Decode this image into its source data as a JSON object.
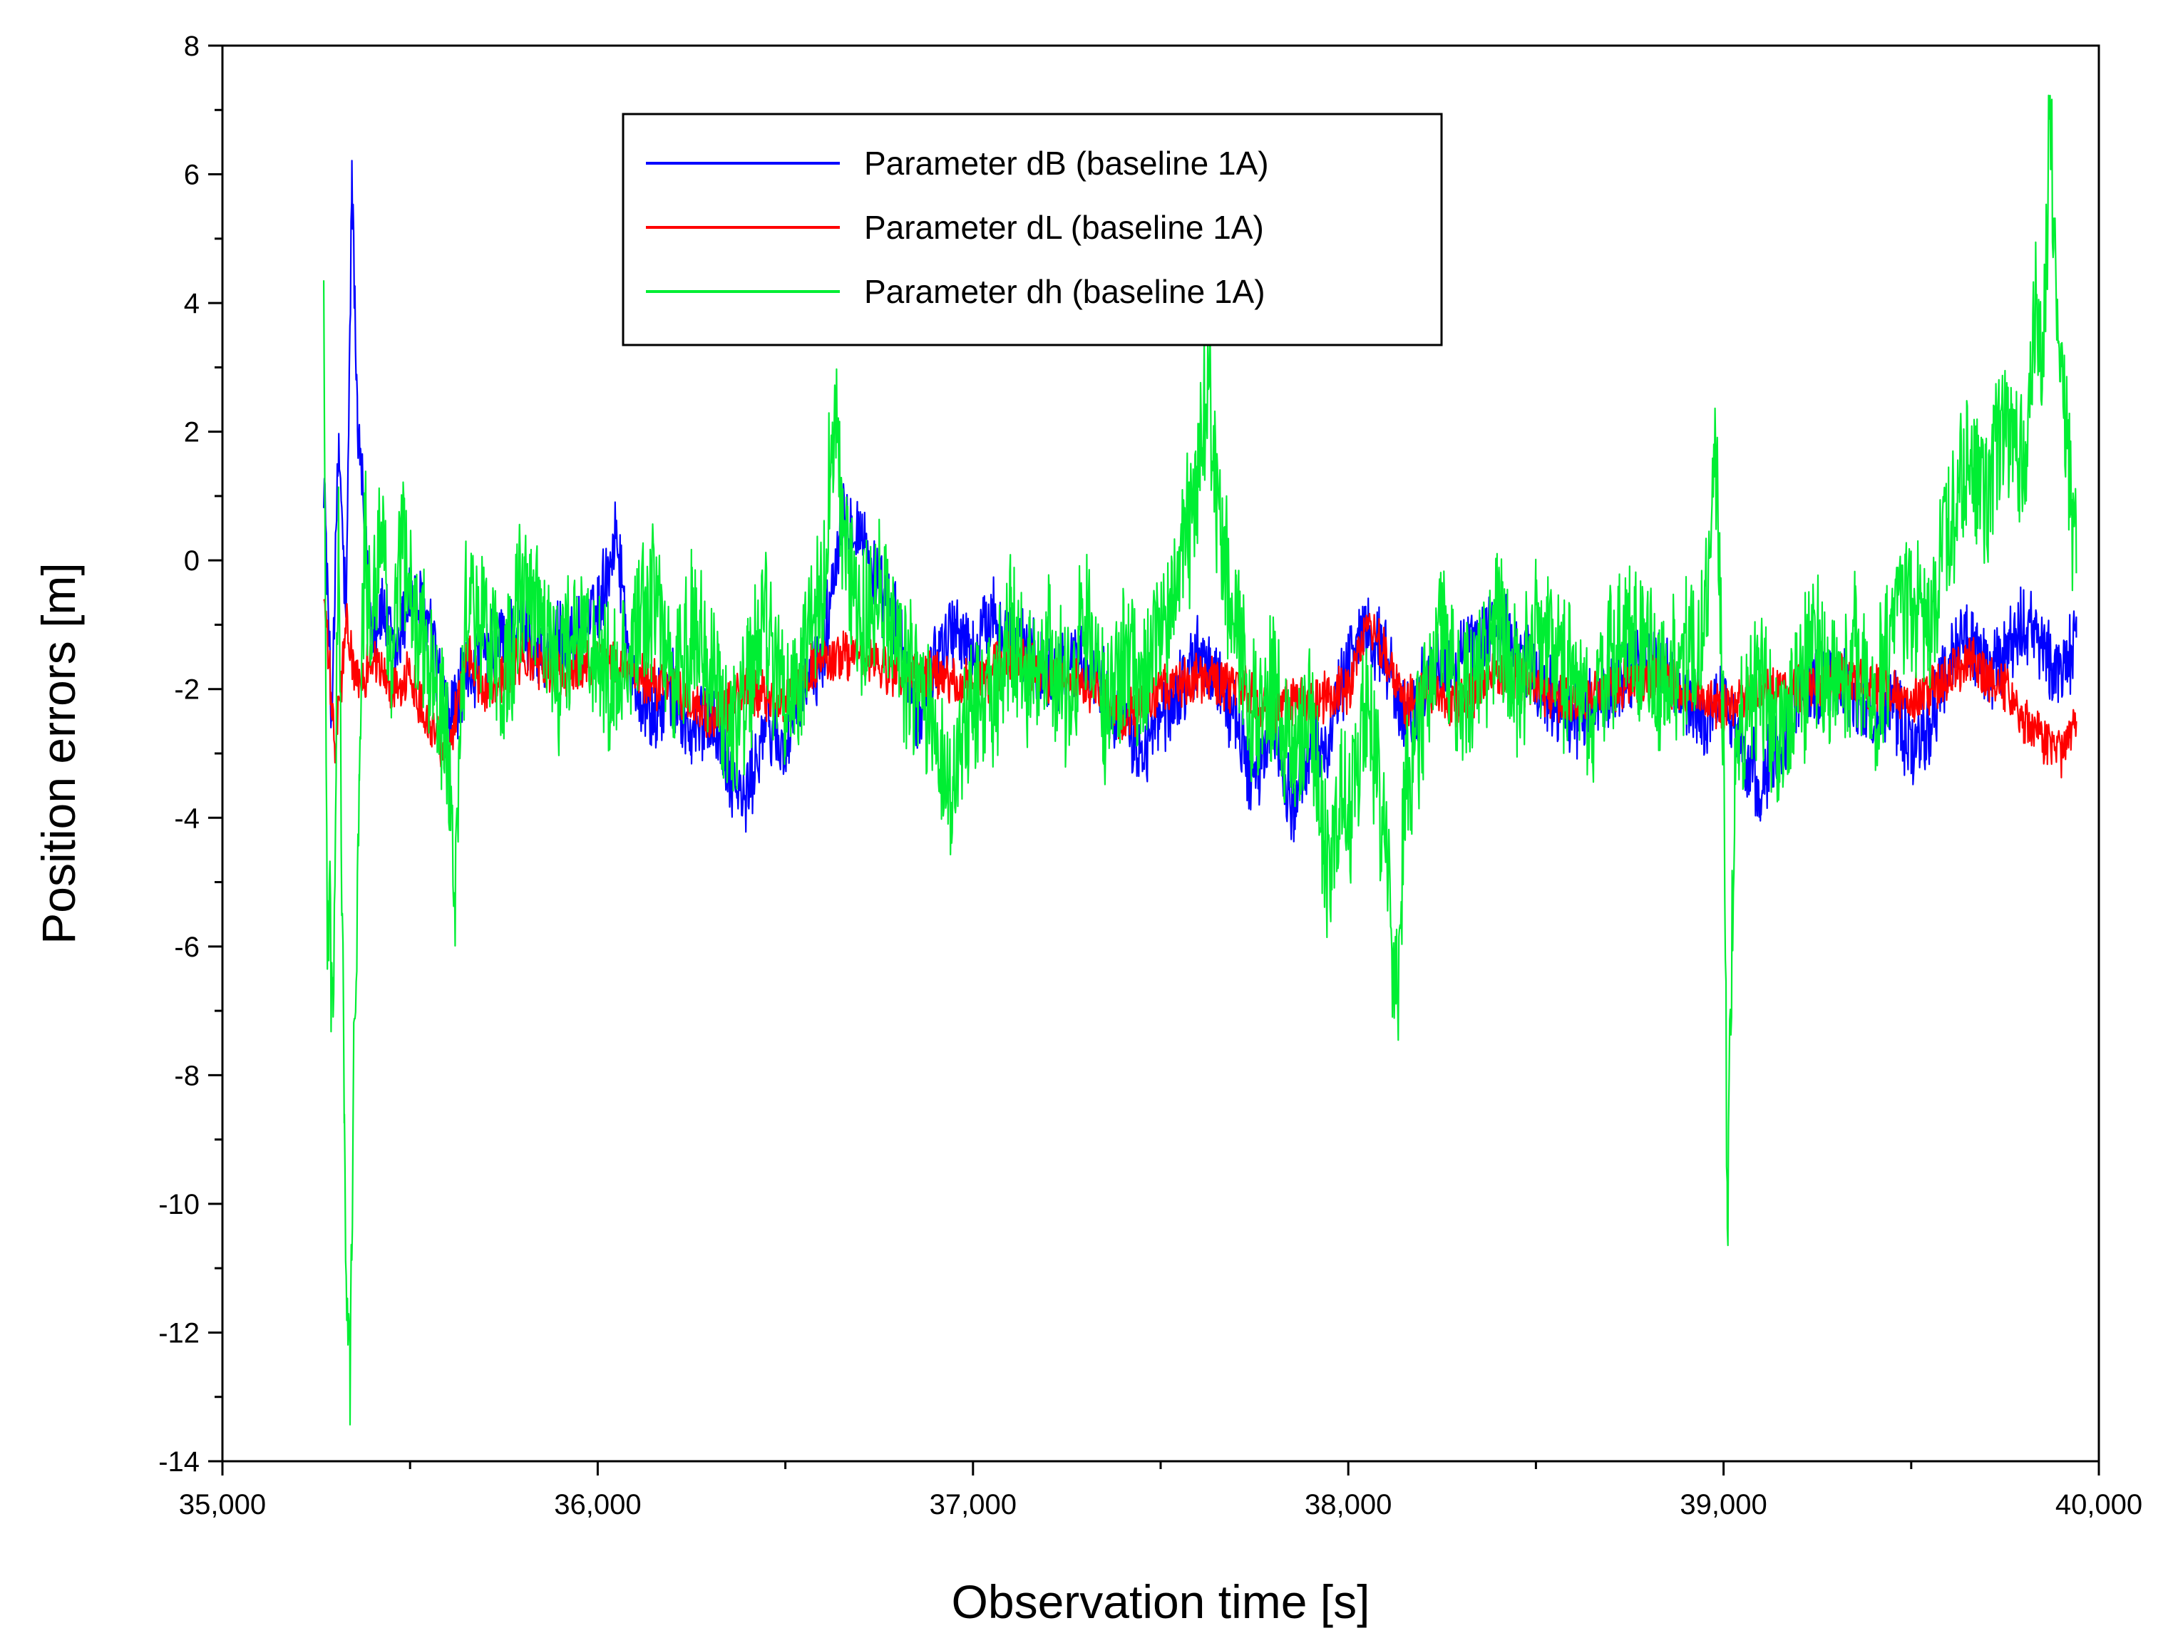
{
  "chart_data": {
    "type": "line",
    "title": "",
    "xlabel": "Observation time [s]",
    "ylabel": "Position errors [m]",
    "xlim": [
      35000,
      40000
    ],
    "ylim": [
      -14,
      8
    ],
    "x_ticks": [
      35000,
      36000,
      37000,
      38000,
      39000,
      40000
    ],
    "x_tick_labels": [
      "35,000",
      "36,000",
      "37,000",
      "38,000",
      "39,000",
      "40,000"
    ],
    "y_ticks": [
      8,
      6,
      4,
      2,
      0,
      -2,
      -4,
      -6,
      -8,
      -10,
      -12,
      -14
    ],
    "y_tick_labels": [
      "8",
      "6",
      "4",
      "2",
      "0",
      "-2",
      "-4",
      "-6",
      "-8",
      "-10",
      "-12",
      "-14"
    ],
    "legend_position": "top-center",
    "series": [
      {
        "name": "Parameter dB (baseline 1A)",
        "legend_label": "Parameter dB (baseline 1A)",
        "color": "#0000ff",
        "x": [
          35270,
          35290,
          35310,
          35330,
          35345,
          35360,
          35380,
          35400,
          35430,
          35460,
          35500,
          35550,
          35600,
          35650,
          35700,
          35750,
          35800,
          35850,
          35900,
          35950,
          36000,
          36050,
          36090,
          36150,
          36200,
          36250,
          36300,
          36350,
          36390,
          36450,
          36500,
          36550,
          36600,
          36650,
          36700,
          36750,
          36800,
          36850,
          36900,
          36950,
          37000,
          37050,
          37100,
          37150,
          37200,
          37300,
          37400,
          37450,
          37500,
          37550,
          37600,
          37650,
          37700,
          37750,
          37800,
          37850,
          37900,
          37950,
          38000,
          38050,
          38100,
          38150,
          38200,
          38300,
          38400,
          38500,
          38600,
          38700,
          38800,
          38900,
          38950,
          39000,
          39050,
          39100,
          39150,
          39200,
          39300,
          39400,
          39450,
          39500,
          39550,
          39600,
          39650,
          39700,
          39750,
          39800,
          39850,
          39900,
          39940
        ],
        "y": [
          1.5,
          -2.5,
          1.8,
          -1.0,
          6.0,
          2.0,
          0.5,
          -1.0,
          -0.8,
          -1.5,
          -0.5,
          -1.0,
          -2.5,
          -1.8,
          -1.5,
          -1.2,
          -1.0,
          -1.5,
          -1.3,
          -1.2,
          -0.8,
          0.5,
          -1.8,
          -2.5,
          -2.0,
          -2.8,
          -2.3,
          -3.2,
          -3.8,
          -2.5,
          -3.0,
          -2.0,
          -1.5,
          0.8,
          0.5,
          -0.5,
          -1.0,
          -2.5,
          -1.5,
          -1.0,
          -1.5,
          -0.8,
          -1.2,
          -1.5,
          -1.8,
          -1.5,
          -2.5,
          -3.0,
          -2.5,
          -2.0,
          -1.5,
          -1.8,
          -2.5,
          -3.5,
          -2.5,
          -3.8,
          -3.0,
          -2.8,
          -1.5,
          -1.0,
          -1.5,
          -2.5,
          -2.0,
          -1.5,
          -1.0,
          -1.8,
          -2.5,
          -2.0,
          -1.5,
          -2.2,
          -2.5,
          -2.0,
          -3.0,
          -3.5,
          -2.8,
          -2.0,
          -1.8,
          -2.5,
          -2.2,
          -3.0,
          -2.5,
          -1.5,
          -1.2,
          -1.8,
          -1.5,
          -1.0,
          -1.3,
          -1.8,
          -1.2
        ]
      },
      {
        "name": "Parameter dL (baseline 1A)",
        "legend_label": "Parameter dL (baseline 1A)",
        "color": "#ff0000",
        "x": [
          35270,
          35300,
          35330,
          35360,
          35400,
          35450,
          35500,
          35550,
          35600,
          35650,
          35700,
          35800,
          35900,
          36000,
          36100,
          36200,
          36300,
          36400,
          36500,
          36600,
          36700,
          36800,
          36900,
          37000,
          37100,
          37200,
          37300,
          37400,
          37500,
          37600,
          37700,
          37800,
          37900,
          38000,
          38050,
          38100,
          38150,
          38200,
          38300,
          38400,
          38500,
          38600,
          38700,
          38800,
          38900,
          39000,
          39100,
          39200,
          39300,
          39400,
          39500,
          39600,
          39650,
          39700,
          39750,
          39800,
          39850,
          39900,
          39940
        ],
        "y": [
          -0.5,
          -3.0,
          -1.0,
          -2.0,
          -1.5,
          -2.0,
          -1.8,
          -2.5,
          -3.0,
          -1.5,
          -2.0,
          -1.5,
          -1.8,
          -1.5,
          -1.8,
          -2.0,
          -2.5,
          -2.0,
          -2.2,
          -1.5,
          -1.5,
          -1.8,
          -1.8,
          -2.0,
          -1.5,
          -1.8,
          -2.0,
          -2.5,
          -2.0,
          -1.8,
          -2.0,
          -2.3,
          -2.2,
          -2.0,
          -1.0,
          -1.5,
          -2.2,
          -2.0,
          -2.2,
          -1.8,
          -2.0,
          -2.2,
          -2.0,
          -1.8,
          -2.0,
          -2.3,
          -2.0,
          -2.0,
          -1.8,
          -2.0,
          -2.2,
          -1.8,
          -1.5,
          -1.8,
          -2.0,
          -2.5,
          -2.8,
          -3.0,
          -2.5
        ]
      },
      {
        "name": "Parameter dh (baseline 1A)",
        "legend_label": "Parameter dh (baseline 1A)",
        "color": "#00ee33",
        "x": [
          35270,
          35280,
          35295,
          35310,
          35325,
          35340,
          35350,
          35365,
          35380,
          35400,
          35420,
          35450,
          35480,
          35500,
          35550,
          35600,
          35620,
          35650,
          35700,
          35750,
          35800,
          35850,
          35900,
          35950,
          36000,
          36050,
          36100,
          36150,
          36200,
          36250,
          36300,
          36350,
          36400,
          36450,
          36500,
          36550,
          36600,
          36630,
          36650,
          36700,
          36750,
          36800,
          36850,
          36900,
          36950,
          37000,
          37050,
          37100,
          37150,
          37200,
          37250,
          37300,
          37350,
          37400,
          37450,
          37500,
          37550,
          37600,
          37630,
          37650,
          37700,
          37750,
          37800,
          37850,
          37900,
          37950,
          37980,
          38000,
          38050,
          38100,
          38130,
          38150,
          38200,
          38250,
          38300,
          38350,
          38400,
          38450,
          38500,
          38550,
          38600,
          38650,
          38700,
          38750,
          38800,
          38850,
          38900,
          38950,
          38980,
          39000,
          39010,
          39030,
          39050,
          39100,
          39150,
          39200,
          39250,
          39300,
          39350,
          39400,
          39450,
          39500,
          39550,
          39600,
          39650,
          39700,
          39750,
          39800,
          39830,
          39850,
          39870,
          39880,
          39900,
          39920,
          39940
        ],
        "y": [
          3.8,
          -5.5,
          -6.5,
          0.5,
          -9.0,
          -13.0,
          -8.0,
          -3.0,
          0.5,
          -1.5,
          1.0,
          -2.0,
          0.5,
          -0.5,
          -1.5,
          -3.0,
          -5.0,
          -0.5,
          -1.0,
          -2.0,
          -0.5,
          -1.0,
          -1.8,
          -1.0,
          -1.5,
          -2.0,
          -1.0,
          -0.5,
          -2.0,
          -1.0,
          -1.5,
          -2.8,
          -2.0,
          -1.0,
          -2.5,
          -1.5,
          -0.5,
          2.4,
          0.5,
          -1.0,
          -0.5,
          -1.5,
          -2.0,
          -2.5,
          -3.5,
          -2.0,
          -2.5,
          -1.0,
          -2.0,
          -1.5,
          -2.0,
          -1.0,
          -2.5,
          -1.5,
          -2.0,
          -1.0,
          -0.5,
          1.5,
          2.8,
          0.5,
          -1.0,
          -2.5,
          -2.0,
          -3.0,
          -2.5,
          -5.0,
          -3.5,
          -4.0,
          -2.0,
          -4.5,
          -7.0,
          -3.5,
          -2.5,
          -1.0,
          -2.0,
          -1.5,
          -1.0,
          -2.0,
          -1.0,
          -1.5,
          -2.0,
          -2.5,
          -1.5,
          -1.0,
          -1.5,
          -2.0,
          -1.5,
          -1.0,
          1.5,
          -2.5,
          -10.3,
          -3.0,
          -2.5,
          -2.0,
          -2.8,
          -2.0,
          -1.5,
          -2.0,
          -1.5,
          -2.5,
          -1.0,
          -0.5,
          -1.0,
          0.5,
          1.5,
          1.0,
          2.0,
          1.5,
          4.0,
          2.5,
          7.0,
          5.0,
          3.0,
          1.5,
          -0.2
        ]
      }
    ]
  }
}
